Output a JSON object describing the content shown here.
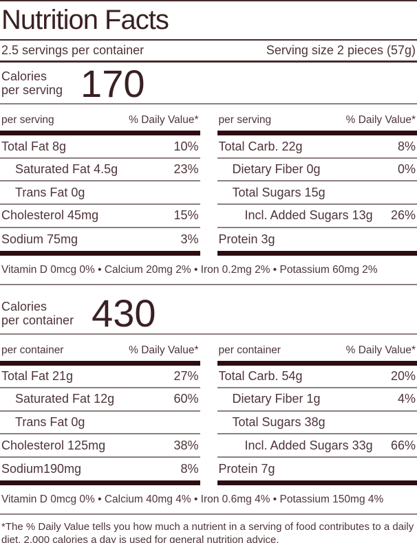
{
  "colors": {
    "text": "#4d3438",
    "title": "#3a2023",
    "heavy_bar": "#2e0d10",
    "dark_rule": "#46292c",
    "light_rule": "#8c7f80",
    "background": "#ffffff"
  },
  "header": {
    "title": "Nutrition Facts",
    "servings_per_container": "2.5 servings per container",
    "serving_size": "Serving size 2 pieces (57g)"
  },
  "per_serving": {
    "calories_word": "Calories",
    "per_label": "per serving",
    "calories_value": "170",
    "col_header": "per serving",
    "dv_header": "% Daily Value*",
    "left_rows": [
      {
        "label": "Total Fat 8g",
        "dv": "10%",
        "indent": 0
      },
      {
        "label": "Saturated Fat 4.5g",
        "dv": "23%",
        "indent": 1
      },
      {
        "label": "Trans Fat 0g",
        "dv": "",
        "indent": 1
      },
      {
        "label": "Cholesterol 45mg",
        "dv": "15%",
        "indent": 0
      },
      {
        "label": "Sodium 75mg",
        "dv": "3%",
        "indent": 0
      }
    ],
    "right_rows": [
      {
        "label": "Total Carb. 22g",
        "dv": "8%",
        "indent": 0
      },
      {
        "label": "Dietary Fiber 0g",
        "dv": "0%",
        "indent": 1
      },
      {
        "label": "Total Sugars 15g",
        "dv": "",
        "indent": 1
      },
      {
        "label": "Incl. Added Sugars 13g",
        "dv": "26%",
        "indent": 2
      },
      {
        "label": "Protein 3g",
        "dv": "",
        "indent": 0
      }
    ],
    "micronutrients": "Vitamin D 0mcg 0% • Calcium 20mg 2% • Iron 0.2mg 2% • Potassium 60mg 2%"
  },
  "per_container": {
    "calories_word": "Calories",
    "per_label": "per container",
    "calories_value": "430",
    "col_header": "per container",
    "dv_header": "% Daily Value*",
    "left_rows": [
      {
        "label": "Total Fat 21g",
        "dv": "27%",
        "indent": 0
      },
      {
        "label": "Saturated Fat 12g",
        "dv": "60%",
        "indent": 1
      },
      {
        "label": "Trans Fat 0g",
        "dv": "",
        "indent": 1
      },
      {
        "label": "Cholesterol 125mg",
        "dv": "38%",
        "indent": 0
      },
      {
        "label": "Sodium190mg",
        "dv": "8%",
        "indent": 0
      }
    ],
    "right_rows": [
      {
        "label": "Total Carb. 54g",
        "dv": "20%",
        "indent": 0
      },
      {
        "label": "Dietary Fiber 1g",
        "dv": "4%",
        "indent": 1
      },
      {
        "label": "Total Sugars 38g",
        "dv": "",
        "indent": 1
      },
      {
        "label": "Incl. Added Sugars 33g",
        "dv": "66%",
        "indent": 2
      },
      {
        "label": "Protein 7g",
        "dv": "",
        "indent": 0
      }
    ],
    "micronutrients": "Vitamin D 0mcg 0% • Calcium 40mg 4% • Iron 0.6mg 4% • Potassium 150mg 4%"
  },
  "footnote": "*The % Daily Value tells you how much a nutrient in a serving of food contributes to a daily diet. 2,000 calories a day is used for general nutrition advice."
}
